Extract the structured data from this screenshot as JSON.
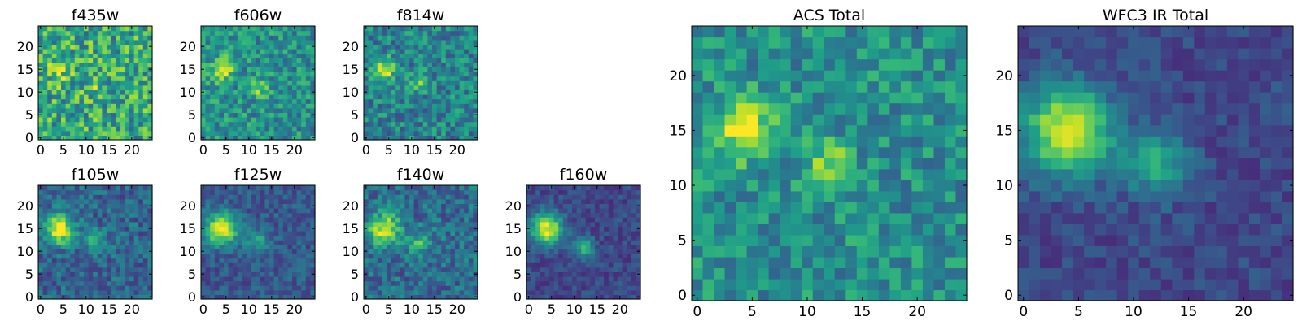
{
  "figure": {
    "colormap": "viridis",
    "colormap_stops": [
      "#440154",
      "#482878",
      "#3e4989",
      "#31688e",
      "#26828e",
      "#1f9e89",
      "#35b779",
      "#6ece58",
      "#b5de2b",
      "#fde725"
    ]
  },
  "chart_data": [
    {
      "type": "heatmap",
      "title": "f435w",
      "xlim": [
        0,
        24
      ],
      "ylim": [
        0,
        24
      ],
      "xticks": [
        "0",
        "5",
        "10",
        "15",
        "20"
      ],
      "yticks": [
        "0",
        "5",
        "10",
        "15",
        "20"
      ],
      "grid": false,
      "grid_size": [
        25,
        25
      ],
      "noise": 0.28,
      "background": 0.6,
      "sources": [
        {
          "x": 4,
          "y": 15,
          "amplitude": 0.18,
          "sigma": 2.2
        },
        {
          "x": 12,
          "y": 11,
          "amplitude": 0.15,
          "sigma": 1.5
        }
      ]
    },
    {
      "type": "heatmap",
      "title": "f606w",
      "xlim": [
        0,
        24
      ],
      "ylim": [
        0,
        24
      ],
      "xticks": [
        "0",
        "5",
        "10",
        "15",
        "20"
      ],
      "yticks": [
        "0",
        "5",
        "10",
        "15",
        "20"
      ],
      "grid": false,
      "grid_size": [
        25,
        25
      ],
      "noise": 0.2,
      "background": 0.5,
      "sources": [
        {
          "x": 4,
          "y": 15,
          "amplitude": 0.45,
          "sigma": 1.8
        },
        {
          "x": 12,
          "y": 11,
          "amplitude": 0.35,
          "sigma": 1.4
        }
      ]
    },
    {
      "type": "heatmap",
      "title": "f814w",
      "xlim": [
        0,
        24
      ],
      "ylim": [
        0,
        24
      ],
      "xticks": [
        "0",
        "5",
        "10",
        "15",
        "20"
      ],
      "yticks": [
        "0",
        "5",
        "10",
        "15",
        "20"
      ],
      "grid": false,
      "grid_size": [
        25,
        25
      ],
      "noise": 0.2,
      "background": 0.45,
      "sources": [
        {
          "x": 4,
          "y": 15,
          "amplitude": 0.5,
          "sigma": 1.8
        },
        {
          "x": 12,
          "y": 12,
          "amplitude": 0.3,
          "sigma": 1.4
        }
      ]
    },
    {
      "type": "heatmap",
      "title": "f105w",
      "xlim": [
        0,
        24
      ],
      "ylim": [
        0,
        24
      ],
      "xticks": [
        "0",
        "5",
        "10",
        "15",
        "20"
      ],
      "yticks": [
        "0",
        "5",
        "10",
        "15",
        "20"
      ],
      "grid": false,
      "grid_size": [
        25,
        25
      ],
      "noise": 0.16,
      "background": 0.33,
      "sources": [
        {
          "x": 4,
          "y": 15,
          "amplitude": 0.65,
          "sigma": 2.3
        },
        {
          "x": 12,
          "y": 12,
          "amplitude": 0.3,
          "sigma": 1.8
        }
      ]
    },
    {
      "type": "heatmap",
      "title": "f125w",
      "xlim": [
        0,
        24
      ],
      "ylim": [
        0,
        24
      ],
      "xticks": [
        "0",
        "5",
        "10",
        "15",
        "20"
      ],
      "yticks": [
        "0",
        "5",
        "10",
        "15",
        "20"
      ],
      "grid": false,
      "grid_size": [
        25,
        25
      ],
      "noise": 0.12,
      "background": 0.28,
      "sources": [
        {
          "x": 4,
          "y": 15,
          "amplitude": 0.7,
          "sigma": 2.5
        },
        {
          "x": 12,
          "y": 12,
          "amplitude": 0.3,
          "sigma": 1.9
        }
      ]
    },
    {
      "type": "heatmap",
      "title": "f140w",
      "xlim": [
        0,
        24
      ],
      "ylim": [
        0,
        24
      ],
      "xticks": [
        "0",
        "5",
        "10",
        "15",
        "20"
      ],
      "yticks": [
        "0",
        "5",
        "10",
        "15",
        "20"
      ],
      "grid": false,
      "grid_size": [
        25,
        25
      ],
      "noise": 0.17,
      "background": 0.36,
      "sources": [
        {
          "x": 4,
          "y": 15,
          "amplitude": 0.6,
          "sigma": 2.4
        },
        {
          "x": 12,
          "y": 12,
          "amplitude": 0.35,
          "sigma": 1.8
        }
      ]
    },
    {
      "type": "heatmap",
      "title": "f160w",
      "xlim": [
        0,
        24
      ],
      "ylim": [
        0,
        24
      ],
      "xticks": [
        "0",
        "5",
        "10",
        "15",
        "20"
      ],
      "yticks": [
        "0",
        "5",
        "10",
        "15",
        "20"
      ],
      "grid": false,
      "grid_size": [
        25,
        25
      ],
      "noise": 0.1,
      "background": 0.22,
      "sources": [
        {
          "x": 4,
          "y": 15,
          "amplitude": 0.75,
          "sigma": 2.5
        },
        {
          "x": 12,
          "y": 11,
          "amplitude": 0.45,
          "sigma": 1.6
        }
      ]
    },
    {
      "type": "heatmap",
      "title": "ACS Total",
      "xlim": [
        0,
        24
      ],
      "ylim": [
        0,
        24
      ],
      "xticks": [
        "0",
        "5",
        "10",
        "15",
        "20"
      ],
      "yticks": [
        "0",
        "5",
        "10",
        "15",
        "20"
      ],
      "grid": false,
      "grid_size": [
        25,
        25
      ],
      "noise": 0.18,
      "background": 0.5,
      "sources": [
        {
          "x": 4,
          "y": 15,
          "amplitude": 0.45,
          "sigma": 1.9
        },
        {
          "x": 12,
          "y": 12,
          "amplitude": 0.35,
          "sigma": 1.3
        }
      ]
    },
    {
      "type": "heatmap",
      "title": "WFC3 IR Total",
      "xlim": [
        0,
        24
      ],
      "ylim": [
        0,
        24
      ],
      "xticks": [
        "0",
        "5",
        "10",
        "15",
        "20"
      ],
      "yticks": [
        "0",
        "5",
        "10",
        "15",
        "20"
      ],
      "grid": false,
      "grid_size": [
        25,
        25
      ],
      "noise": 0.09,
      "background": 0.22,
      "sources": [
        {
          "x": 4,
          "y": 15,
          "amplitude": 0.75,
          "sigma": 2.8
        },
        {
          "x": 12,
          "y": 12,
          "amplitude": 0.4,
          "sigma": 2.0
        }
      ]
    }
  ]
}
